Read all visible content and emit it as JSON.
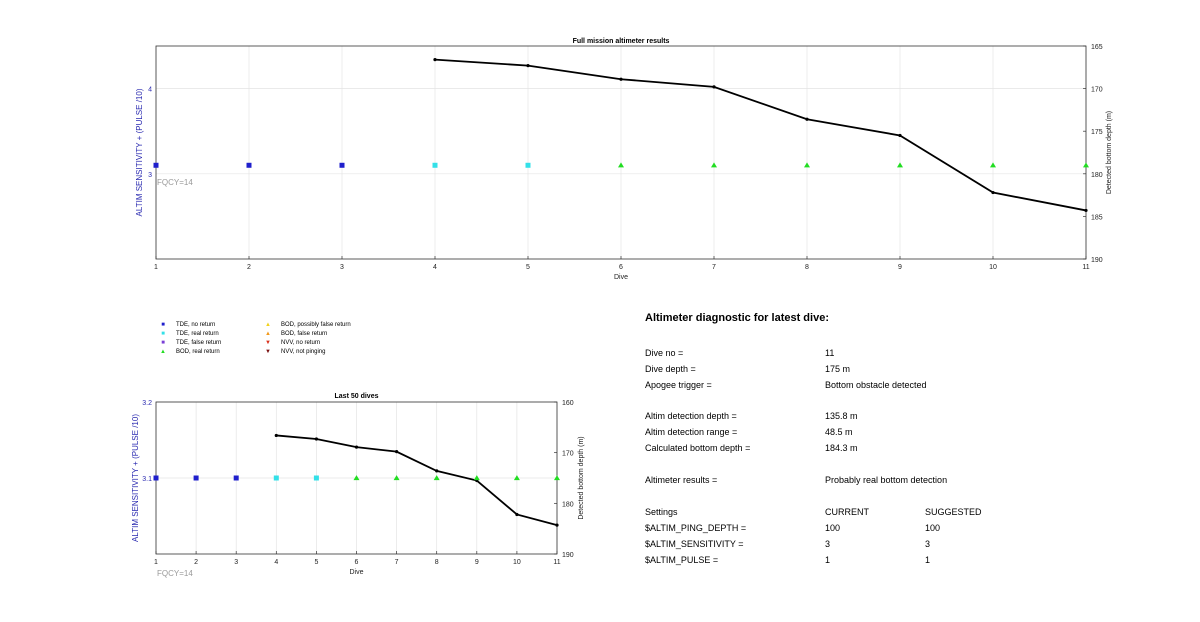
{
  "chart_data": [
    {
      "type": "line",
      "title": "Full mission altimeter results",
      "xlabel": "Dive",
      "ylabel_left": "ALTIM SENSITIVITY + (PULSE /10)",
      "ylabel_right": "Detected bottom depth (m)",
      "annotation": "FQCY=14",
      "x_ticks": [
        "1",
        "2",
        "3",
        "4",
        "5",
        "6",
        "7",
        "8",
        "9",
        "10",
        "11"
      ],
      "left_ticks": [
        "3",
        "4"
      ],
      "right_ticks": [
        "165",
        "170",
        "175",
        "180",
        "185",
        "190"
      ],
      "xlim": [
        1,
        11
      ],
      "left_ylim": [
        2.0,
        4.5
      ],
      "right_ylim": [
        165,
        190
      ],
      "right_axis_inverted": true,
      "grid": true,
      "status_series": {
        "x": [
          1,
          2,
          3,
          4,
          5,
          6,
          7,
          8,
          9,
          10,
          11
        ],
        "y": [
          3.1,
          3.1,
          3.1,
          3.1,
          3.1,
          3.1,
          3.1,
          3.1,
          3.1,
          3.1,
          3.1
        ],
        "status": [
          "TDE, no return",
          "TDE, no return",
          "TDE, no return",
          "TDE, real return",
          "TDE, real return",
          "BOD, real return",
          "BOD, real return",
          "BOD, real return",
          "BOD, real return",
          "BOD, real return",
          "BOD, real return"
        ]
      },
      "depth_series": {
        "x": [
          4,
          5,
          6,
          7,
          8,
          9,
          10,
          11
        ],
        "y": [
          166.6,
          167.3,
          168.9,
          169.8,
          173.6,
          175.5,
          182.2,
          184.3
        ]
      }
    },
    {
      "type": "line",
      "title": "Last 50 dives",
      "xlabel": "Dive",
      "ylabel_left": "ALTIM SENSITIVITY + (PULSE /10)",
      "ylabel_right": "Detected bottom depth (m)",
      "annotation": "FQCY=14",
      "x_ticks": [
        "1",
        "2",
        "3",
        "4",
        "5",
        "6",
        "7",
        "8",
        "9",
        "10",
        "11"
      ],
      "left_ticks": [
        "3.1",
        "3.2"
      ],
      "right_ticks": [
        "160",
        "170",
        "180",
        "190"
      ],
      "xlim": [
        1,
        11
      ],
      "left_ylim": [
        3.0,
        3.2
      ],
      "right_ylim": [
        160,
        190
      ],
      "right_axis_inverted": true,
      "grid": true,
      "status_series": {
        "x": [
          1,
          2,
          3,
          4,
          5,
          6,
          7,
          8,
          9,
          10,
          11
        ],
        "y": [
          3.1,
          3.1,
          3.1,
          3.1,
          3.1,
          3.1,
          3.1,
          3.1,
          3.1,
          3.1,
          3.1
        ],
        "status": [
          "TDE, no return",
          "TDE, no return",
          "TDE, no return",
          "TDE, real return",
          "TDE, real return",
          "BOD, real return",
          "BOD, real return",
          "BOD, real return",
          "BOD, real return",
          "BOD, real return",
          "BOD, real return"
        ]
      },
      "depth_series": {
        "x": [
          4,
          5,
          6,
          7,
          8,
          9,
          10,
          11
        ],
        "y": [
          166.6,
          167.3,
          168.9,
          169.8,
          173.6,
          175.5,
          182.2,
          184.3
        ]
      }
    }
  ],
  "legend": [
    {
      "label": "TDE, no return",
      "marker": "square",
      "color": "#1f1fcc"
    },
    {
      "label": "TDE, real return",
      "marker": "square",
      "color": "#33e0e8"
    },
    {
      "label": "TDE, false return",
      "marker": "square",
      "color": "#7a3fd6"
    },
    {
      "label": "BOD, real return",
      "marker": "triangle-up",
      "color": "#22dd22"
    },
    {
      "label": "BOD, possibly false return",
      "marker": "triangle-up",
      "color": "#f2d21b"
    },
    {
      "label": "BOD, false return",
      "marker": "triangle-up",
      "color": "#f29a1b"
    },
    {
      "label": "NVV, no return",
      "marker": "triangle-down",
      "color": "#d9301b"
    },
    {
      "label": "NVV, not pinging",
      "marker": "triangle-down",
      "color": "#7a1010"
    }
  ],
  "diagnostic": {
    "heading": "Altimeter diagnostic for latest dive:",
    "rows": [
      {
        "label": "Dive no =",
        "value": "11"
      },
      {
        "label": "Dive depth =",
        "value": "175 m"
      },
      {
        "label": "Apogee trigger =",
        "value": "Bottom obstacle detected"
      },
      {
        "label": "Altim detection depth =",
        "value": "135.8 m"
      },
      {
        "label": "Altim detection range =",
        "value": "48.5 m"
      },
      {
        "label": "Calculated bottom depth =",
        "value": "184.3 m"
      },
      {
        "label": "Altimeter results =",
        "value": "Probably real bottom detection"
      }
    ],
    "settings_header": {
      "label": "Settings",
      "current": "CURRENT",
      "suggested": "SUGGESTED"
    },
    "settings": [
      {
        "name": "$ALTIM_PING_DEPTH =",
        "current": "100",
        "suggested": "100"
      },
      {
        "name": "$ALTIM_SENSITIVITY =",
        "current": "3",
        "suggested": "3"
      },
      {
        "name": "$ALTIM_PULSE =",
        "current": "1",
        "suggested": "1"
      }
    ]
  }
}
